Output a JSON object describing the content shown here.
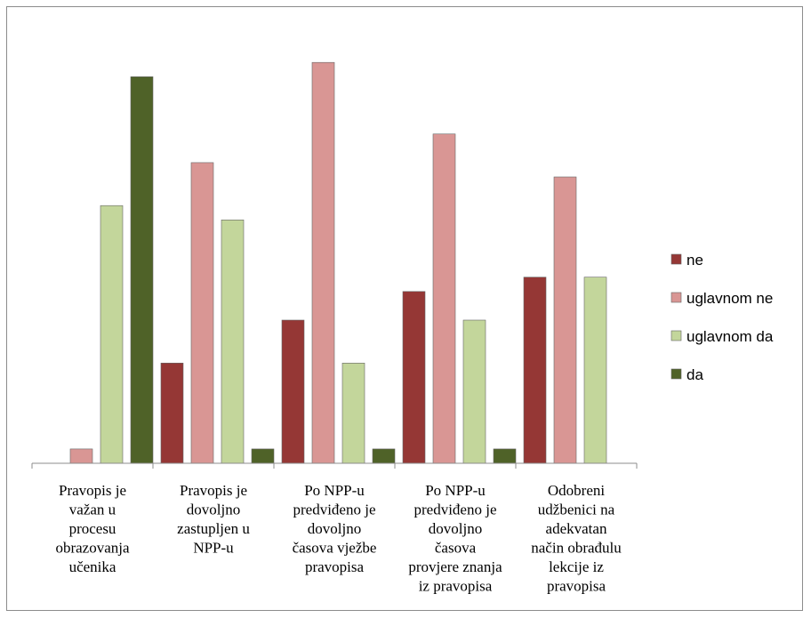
{
  "chart_data": {
    "type": "bar",
    "title": "",
    "xlabel": "",
    "ylabel": "",
    "ylim": [
      0,
      28
    ],
    "grid": false,
    "legend_position": "right",
    "categories": [
      [
        "Pravopis je",
        "važan u",
        "procesu",
        "obrazovanja",
        "učenika"
      ],
      [
        "Pravopis je",
        "dovoljno",
        "zastupljen u",
        "NPP-u"
      ],
      [
        "Po NPP-u",
        "predviđeno je",
        "dovoljno",
        "časova vježbe",
        "pravopisa"
      ],
      [
        "Po NPP-u",
        "predviđeno je",
        "dovoljno",
        "časova",
        "provjere znanja",
        "iz pravopisa"
      ],
      [
        "Odobreni",
        "udžbenici na",
        "adekvatan",
        "način obrađulu",
        "lekcije iz",
        "pravopisa"
      ]
    ],
    "series": [
      {
        "name": "ne",
        "color": "#953735",
        "values": [
          0,
          7,
          10,
          12,
          13
        ]
      },
      {
        "name": "uglavnom ne",
        "color": "#d99694",
        "values": [
          1,
          21,
          28,
          23,
          20
        ]
      },
      {
        "name": "uglavnom da",
        "color": "#c3d69b",
        "values": [
          18,
          17,
          7,
          10,
          13
        ]
      },
      {
        "name": "da",
        "color": "#4f6228",
        "values": [
          27,
          1,
          1,
          1,
          0
        ]
      }
    ]
  }
}
